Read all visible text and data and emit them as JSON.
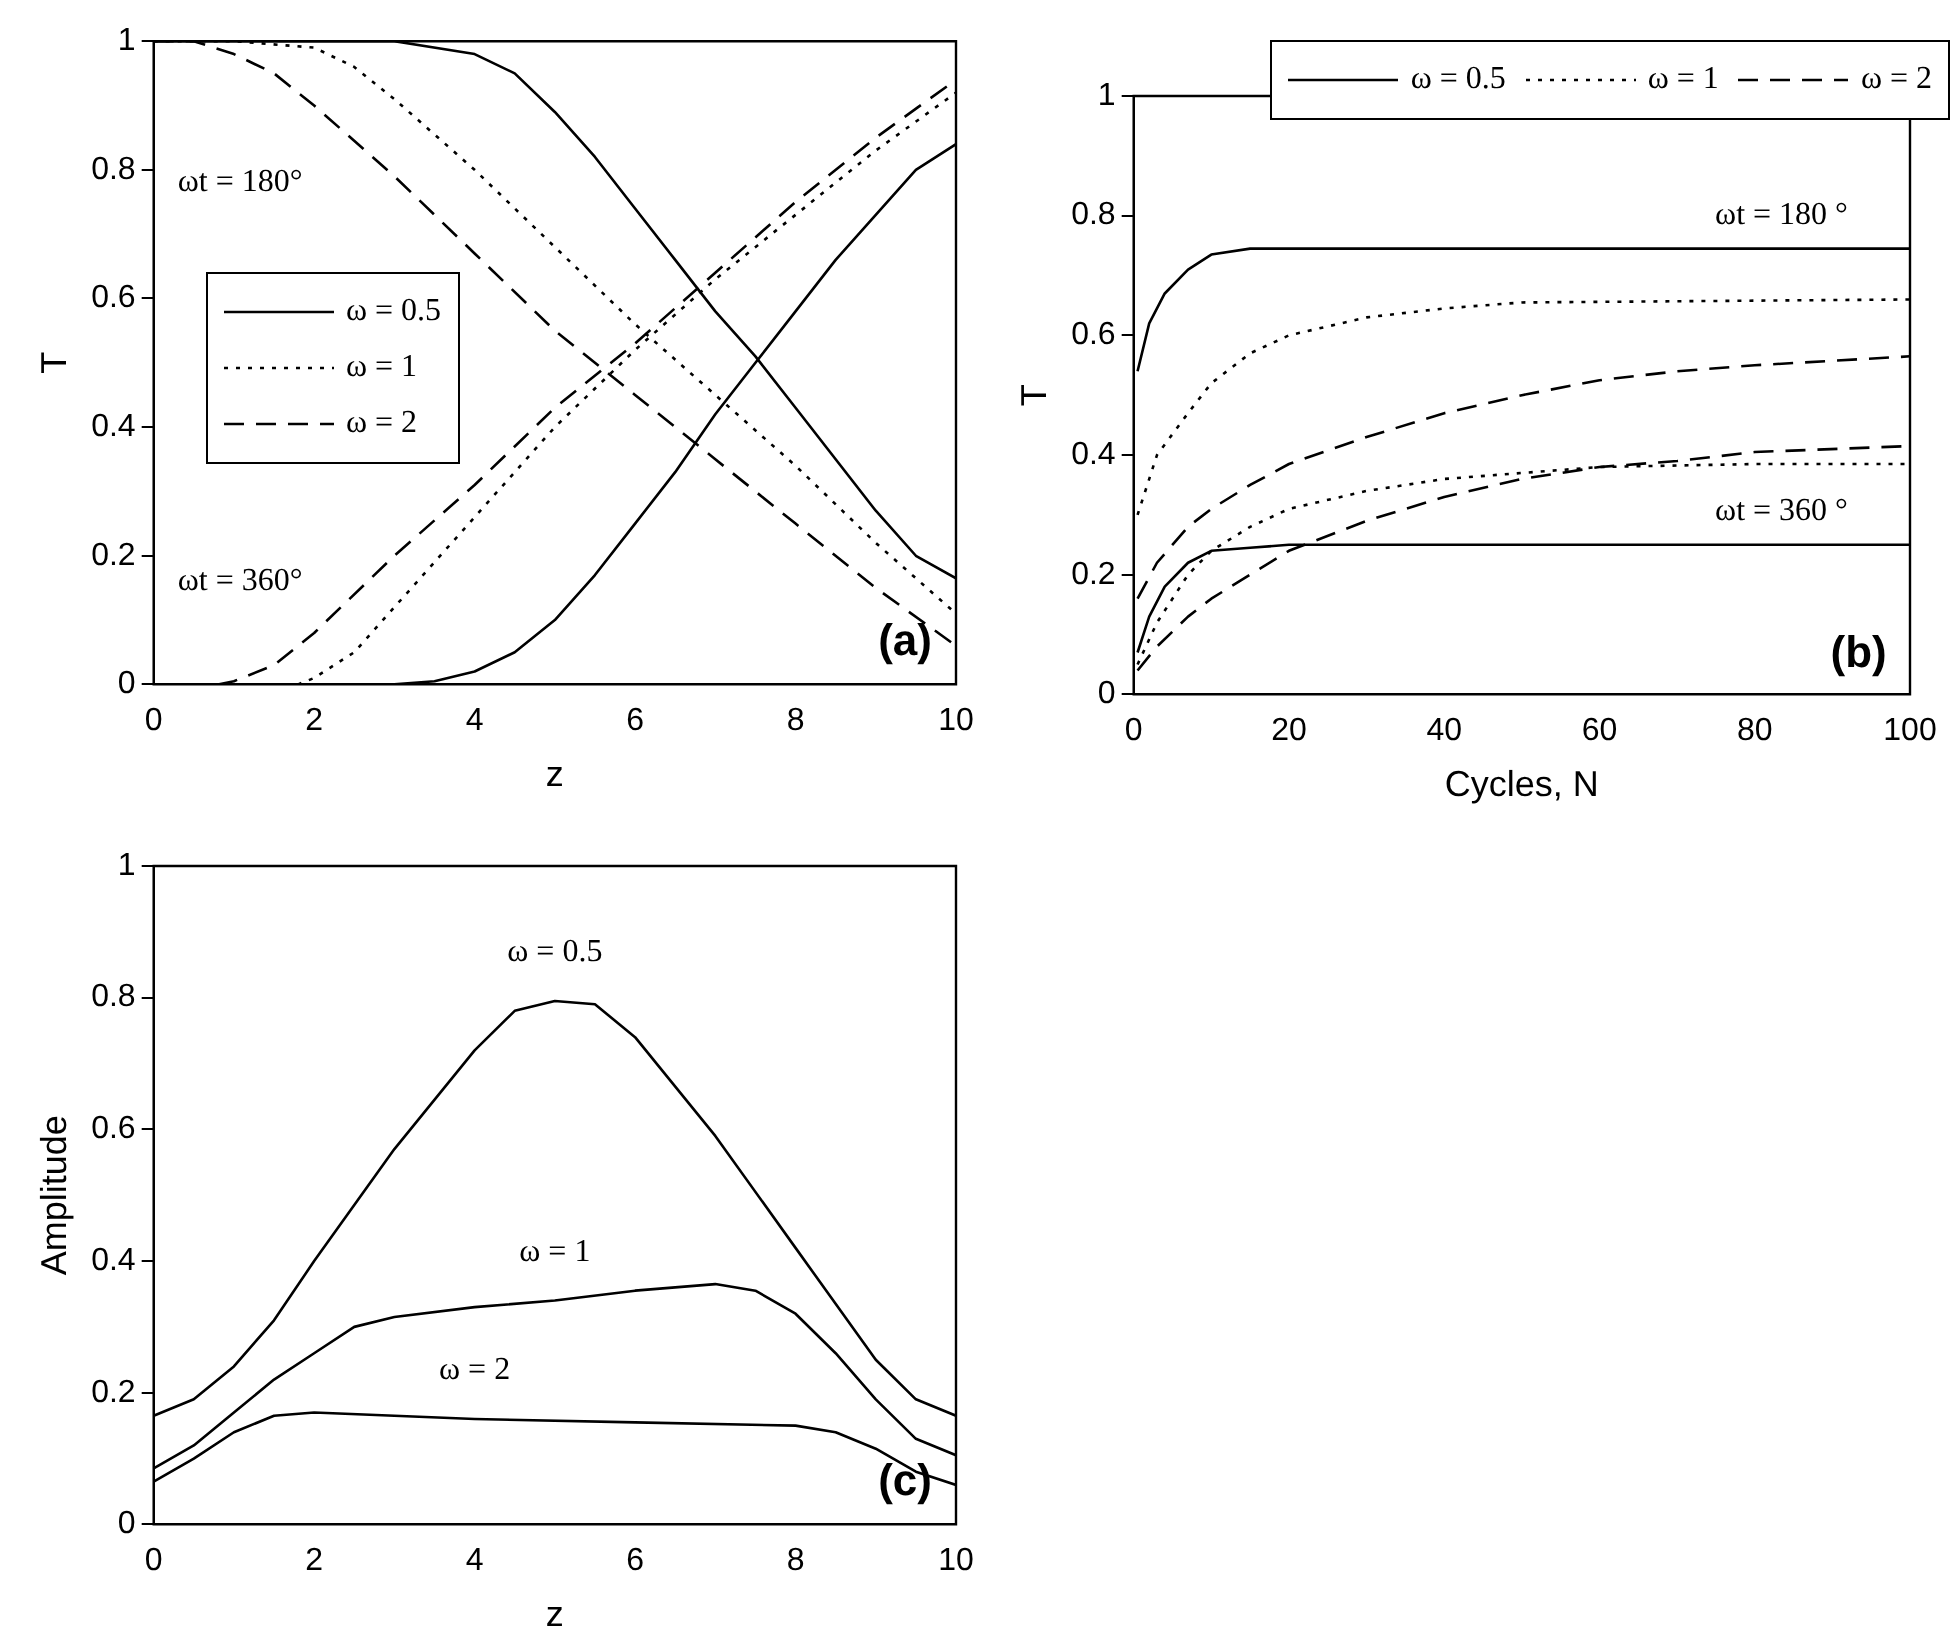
{
  "chart_data": [
    {
      "type": "line",
      "xlabel": "z",
      "ylabel": "T",
      "xlim": [
        0,
        10
      ],
      "xticks": [
        0,
        2,
        4,
        6,
        8,
        10
      ],
      "ylim": [
        0,
        1
      ],
      "yticks": [
        0,
        0.2,
        0.4,
        0.6,
        0.8,
        1
      ],
      "grid": false,
      "legend": "left",
      "marker": "none",
      "annotations": [
        "ωt = 180°",
        "ωt = 360°",
        "(a)"
      ],
      "series": [
        {
          "name": "ω = 0.5",
          "color": "#000000",
          "line_style": "solid",
          "x": [
            0,
            3,
            4,
            4.5,
            5,
            5.5,
            6,
            6.5,
            7,
            7.5,
            8,
            8.5,
            9,
            9.5,
            10
          ],
          "values": [
            1,
            1,
            0.98,
            0.95,
            0.89,
            0.82,
            0.74,
            0.66,
            0.58,
            0.51,
            0.43,
            0.35,
            0.27,
            0.2,
            0.165
          ]
        },
        {
          "name": "ω = 1",
          "color": "#000000",
          "line_style": "dotted",
          "x": [
            0,
            1,
            2,
            2.5,
            3,
            4,
            5,
            6,
            7,
            8,
            9,
            10
          ],
          "values": [
            1,
            1,
            0.99,
            0.96,
            0.91,
            0.8,
            0.68,
            0.56,
            0.45,
            0.34,
            0.22,
            0.11
          ]
        },
        {
          "name": "ω = 2",
          "color": "#000000",
          "line_style": "dashed",
          "x": [
            0,
            0.5,
            1,
            1.5,
            2,
            3,
            4,
            5,
            6,
            7,
            8,
            9,
            10
          ],
          "values": [
            1,
            1,
            0.98,
            0.95,
            0.9,
            0.79,
            0.67,
            0.55,
            0.45,
            0.35,
            0.25,
            0.15,
            0.06
          ]
        },
        {
          "color": "#000000",
          "line_style": "solid",
          "x": [
            0,
            3,
            3.5,
            4,
            4.5,
            5,
            5.5,
            6,
            6.5,
            7,
            7.5,
            8,
            8.5,
            9,
            9.5,
            10
          ],
          "values": [
            0,
            0,
            0.005,
            0.02,
            0.05,
            0.1,
            0.17,
            0.25,
            0.33,
            0.42,
            0.5,
            0.58,
            0.66,
            0.73,
            0.8,
            0.84
          ]
        },
        {
          "color": "#000000",
          "line_style": "dotted",
          "x": [
            0,
            1.8,
            2,
            2.5,
            3,
            4,
            5,
            6,
            7,
            8,
            9,
            10
          ],
          "values": [
            0,
            0,
            0.01,
            0.05,
            0.12,
            0.26,
            0.4,
            0.52,
            0.63,
            0.73,
            0.83,
            0.92
          ]
        },
        {
          "color": "#000000",
          "line_style": "dashed",
          "x": [
            0,
            0.8,
            1,
            1.5,
            2,
            3,
            4,
            5,
            6,
            7,
            8,
            9,
            10
          ],
          "values": [
            0,
            0,
            0.005,
            0.03,
            0.08,
            0.2,
            0.31,
            0.43,
            0.53,
            0.64,
            0.75,
            0.85,
            0.94
          ]
        }
      ]
    },
    {
      "type": "line",
      "xlabel": "Cycles, N",
      "ylabel": "T",
      "xlim": [
        0,
        100
      ],
      "xticks": [
        0,
        20,
        40,
        60,
        80,
        100
      ],
      "ylim": [
        0,
        1
      ],
      "yticks": [
        0,
        0.2,
        0.4,
        0.6,
        0.8,
        1
      ],
      "grid": false,
      "legend": "top",
      "marker": "none",
      "annotations": [
        "ωt = 180 °",
        "ωt = 360 °",
        "(b)"
      ],
      "series": [
        {
          "name": "ω = 0.5",
          "color": "#000000",
          "line_style": "solid",
          "x": [
            0.5,
            2,
            4,
            7,
            10,
            15,
            100
          ],
          "values": [
            0.54,
            0.62,
            0.67,
            0.71,
            0.735,
            0.745,
            0.745
          ]
        },
        {
          "name": "ω = 1",
          "color": "#000000",
          "line_style": "dotted",
          "x": [
            0.5,
            3,
            7,
            10,
            15,
            20,
            30,
            40,
            50,
            100
          ],
          "values": [
            0.3,
            0.4,
            0.47,
            0.52,
            0.57,
            0.6,
            0.63,
            0.645,
            0.655,
            0.66
          ]
        },
        {
          "name": "ω = 2",
          "color": "#000000",
          "line_style": "dashed",
          "x": [
            0.5,
            3,
            7,
            10,
            15,
            20,
            30,
            40,
            50,
            60,
            70,
            80,
            100
          ],
          "values": [
            0.16,
            0.22,
            0.28,
            0.31,
            0.35,
            0.385,
            0.43,
            0.47,
            0.5,
            0.525,
            0.54,
            0.55,
            0.565
          ]
        },
        {
          "color": "#000000",
          "line_style": "solid",
          "x": [
            0.5,
            2,
            4,
            7,
            10,
            15,
            20,
            100
          ],
          "values": [
            0.07,
            0.13,
            0.18,
            0.22,
            0.24,
            0.245,
            0.25,
            0.25
          ]
        },
        {
          "color": "#000000",
          "line_style": "dotted",
          "x": [
            0.5,
            3,
            7,
            10,
            15,
            20,
            30,
            40,
            50,
            60,
            80,
            100
          ],
          "values": [
            0.05,
            0.12,
            0.2,
            0.24,
            0.28,
            0.31,
            0.34,
            0.36,
            0.37,
            0.38,
            0.385,
            0.385
          ]
        },
        {
          "color": "#000000",
          "line_style": "dashed",
          "x": [
            0.5,
            3,
            7,
            10,
            15,
            20,
            30,
            40,
            50,
            60,
            70,
            80,
            100
          ],
          "values": [
            0.04,
            0.08,
            0.13,
            0.16,
            0.2,
            0.24,
            0.29,
            0.33,
            0.36,
            0.38,
            0.39,
            0.405,
            0.415
          ]
        }
      ]
    },
    {
      "type": "line",
      "xlabel": "z",
      "ylabel": "Amplitude",
      "xlim": [
        0,
        10
      ],
      "xticks": [
        0,
        2,
        4,
        6,
        8,
        10
      ],
      "ylim": [
        0,
        1
      ],
      "yticks": [
        0,
        0.2,
        0.4,
        0.6,
        0.8,
        1
      ],
      "grid": false,
      "legend": false,
      "marker": "none",
      "annotations": [
        "(c)"
      ],
      "series": [
        {
          "name": "ω = 0.5",
          "color": "#000000",
          "line_style": "solid",
          "x": [
            0,
            0.5,
            1,
            1.5,
            2,
            3,
            4,
            4.5,
            5,
            5.5,
            6,
            7,
            8,
            9,
            9.5,
            10
          ],
          "values": [
            0.165,
            0.19,
            0.24,
            0.31,
            0.4,
            0.57,
            0.72,
            0.78,
            0.795,
            0.79,
            0.74,
            0.59,
            0.42,
            0.25,
            0.19,
            0.165
          ]
        },
        {
          "name": "ω = 1",
          "color": "#000000",
          "line_style": "solid",
          "x": [
            0,
            0.5,
            1,
            1.5,
            2,
            2.5,
            3,
            4,
            5,
            6,
            7,
            7.5,
            8,
            8.5,
            9,
            9.5,
            10
          ],
          "values": [
            0.085,
            0.12,
            0.17,
            0.22,
            0.26,
            0.3,
            0.315,
            0.33,
            0.34,
            0.355,
            0.365,
            0.355,
            0.32,
            0.26,
            0.19,
            0.13,
            0.105
          ]
        },
        {
          "name": "ω = 2",
          "color": "#000000",
          "line_style": "solid",
          "x": [
            0,
            0.5,
            1,
            1.5,
            2,
            4,
            6,
            8,
            8.5,
            9,
            9.5,
            10
          ],
          "values": [
            0.065,
            0.1,
            0.14,
            0.165,
            0.17,
            0.16,
            0.155,
            0.15,
            0.14,
            0.115,
            0.08,
            0.06
          ]
        }
      ]
    }
  ]
}
